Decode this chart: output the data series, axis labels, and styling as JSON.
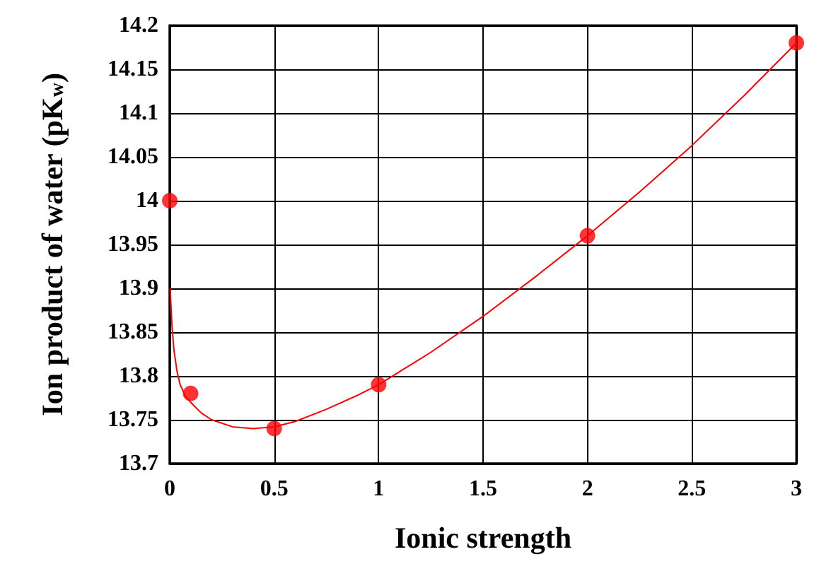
{
  "chart_data": {
    "type": "scatter",
    "xlabel": "Ionic strength",
    "ylabel": "Ion product of water (pK$_{w}$)",
    "xlim": [
      0,
      3
    ],
    "xticks": [
      0,
      0.5,
      1,
      1.5,
      2,
      2.5,
      3
    ],
    "ylim": [
      13.7,
      14.2
    ],
    "yticks": [
      13.7,
      13.75,
      13.8,
      13.85,
      13.9,
      13.95,
      14,
      14.05,
      14.1,
      14.15,
      14.2
    ],
    "grid": true,
    "marker": "circle",
    "series": [
      {
        "type": "scatter",
        "color": "#ff0000",
        "x": [
          0,
          0.1,
          0.5,
          1,
          2,
          3
        ],
        "values": [
          14,
          13.78,
          13.74,
          13.79,
          13.96,
          14.18
        ]
      },
      {
        "type": "line",
        "color": "#ff0000",
        "marker": "none",
        "x": [
          0.002,
          0.01,
          0.02,
          0.035,
          0.05,
          0.075,
          0.1,
          0.15,
          0.2,
          0.3,
          0.4,
          0.5,
          0.6,
          0.75,
          0.9,
          1,
          1.25,
          1.5,
          1.75,
          2,
          2.25,
          2.5,
          2.75,
          3
        ],
        "values": [
          13.9,
          13.86,
          13.83,
          13.805,
          13.79,
          13.777,
          13.77,
          13.758,
          13.75,
          13.742,
          13.74,
          13.742,
          13.748,
          13.762,
          13.778,
          13.79,
          13.827,
          13.868,
          13.913,
          13.96,
          14.01,
          14.063,
          14.12,
          14.18
        ]
      }
    ]
  }
}
